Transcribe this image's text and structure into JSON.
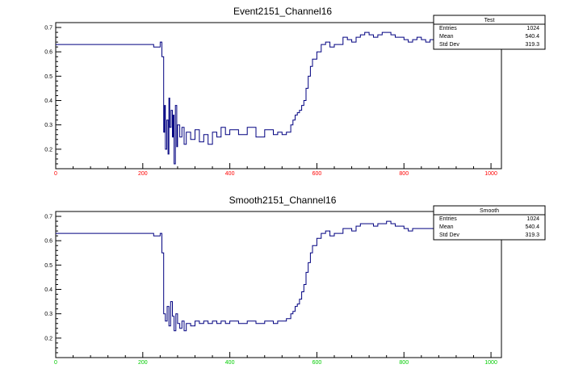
{
  "colors": {
    "trace": "#000080",
    "top_tick_labels": "#ff0000",
    "bottom_tick_labels": "#00cc00",
    "axis": "#000000"
  },
  "chart_data": [
    {
      "type": "line",
      "title": "Event2151_Channel16",
      "xlabel": "",
      "ylabel": "",
      "xlim": [
        0,
        1024
      ],
      "ylim": [
        0.12,
        0.72
      ],
      "x_ticks": [
        0,
        200,
        400,
        600,
        800,
        1000
      ],
      "y_ticks": [
        0.2,
        0.3,
        0.4,
        0.5,
        0.6,
        0.7
      ],
      "grid": false,
      "x_tick_color": "#ff0000",
      "stats": {
        "name": "Test",
        "rows": [
          {
            "label": "Entries",
            "value": "1024"
          },
          {
            "label": "Mean",
            "value": "540.4"
          },
          {
            "label": "Std Dev",
            "value": "319.3"
          }
        ]
      },
      "series": [
        {
          "x": [
            0,
            50,
            100,
            150,
            200,
            225,
            240,
            244,
            248,
            250,
            252,
            255,
            258,
            260,
            262,
            265,
            268,
            270,
            272,
            275,
            278,
            280,
            285,
            290,
            295,
            300,
            310,
            320,
            330,
            340,
            350,
            360,
            370,
            380,
            390,
            400,
            420,
            440,
            460,
            480,
            500,
            510,
            520,
            530,
            540,
            545,
            550,
            555,
            560,
            565,
            570,
            575,
            580,
            585,
            590,
            600,
            610,
            620,
            630,
            640,
            650,
            660,
            670,
            680,
            690,
            700,
            710,
            720,
            730,
            740,
            750,
            760,
            770,
            780,
            790,
            800,
            810,
            820,
            830,
            840,
            850,
            860,
            870,
            880,
            890,
            900,
            910,
            920,
            930,
            940,
            950,
            960,
            970,
            980,
            990,
            1000,
            1010,
            1020
          ],
          "y": [
            0.63,
            0.63,
            0.63,
            0.63,
            0.63,
            0.62,
            0.64,
            0.58,
            0.27,
            0.38,
            0.2,
            0.32,
            0.18,
            0.41,
            0.29,
            0.36,
            0.25,
            0.34,
            0.14,
            0.38,
            0.21,
            0.3,
            0.25,
            0.29,
            0.22,
            0.27,
            0.24,
            0.28,
            0.23,
            0.26,
            0.22,
            0.27,
            0.25,
            0.29,
            0.26,
            0.28,
            0.26,
            0.29,
            0.25,
            0.28,
            0.26,
            0.27,
            0.26,
            0.27,
            0.3,
            0.32,
            0.34,
            0.35,
            0.36,
            0.38,
            0.4,
            0.45,
            0.5,
            0.54,
            0.57,
            0.6,
            0.63,
            0.64,
            0.62,
            0.63,
            0.63,
            0.66,
            0.65,
            0.64,
            0.66,
            0.67,
            0.68,
            0.67,
            0.66,
            0.67,
            0.68,
            0.68,
            0.67,
            0.66,
            0.66,
            0.65,
            0.64,
            0.65,
            0.66,
            0.65,
            0.64,
            0.65,
            0.66,
            0.67,
            0.68,
            0.69,
            0.7,
            0.69,
            0.7,
            0.7,
            0.71,
            0.7,
            0.69,
            0.7,
            0.7,
            0.7,
            0.69,
            0.7
          ]
        }
      ]
    },
    {
      "type": "line",
      "title": "Smooth2151_Channel16",
      "xlabel": "",
      "ylabel": "",
      "xlim": [
        0,
        1024
      ],
      "ylim": [
        0.12,
        0.72
      ],
      "x_ticks": [
        0,
        200,
        400,
        600,
        800,
        1000
      ],
      "y_ticks": [
        0.2,
        0.3,
        0.4,
        0.5,
        0.6,
        0.7
      ],
      "grid": false,
      "x_tick_color": "#00cc00",
      "stats": {
        "name": "Smooth",
        "rows": [
          {
            "label": "Entries",
            "value": "1024"
          },
          {
            "label": "Mean",
            "value": "540.4"
          },
          {
            "label": "Std Dev",
            "value": "319.3"
          }
        ]
      },
      "series": [
        {
          "x": [
            0,
            50,
            100,
            150,
            200,
            225,
            240,
            244,
            248,
            252,
            256,
            260,
            264,
            268,
            272,
            276,
            280,
            285,
            290,
            295,
            300,
            310,
            320,
            330,
            340,
            350,
            360,
            370,
            380,
            390,
            400,
            420,
            440,
            460,
            480,
            500,
            510,
            520,
            530,
            540,
            545,
            550,
            555,
            560,
            565,
            570,
            575,
            580,
            585,
            590,
            600,
            610,
            620,
            630,
            640,
            650,
            660,
            670,
            680,
            690,
            700,
            710,
            720,
            730,
            740,
            750,
            760,
            770,
            780,
            790,
            800,
            810,
            820,
            830,
            840,
            850,
            860,
            870,
            880,
            890,
            900,
            910,
            920,
            930,
            940,
            950,
            960,
            970,
            980,
            990,
            1000,
            1010,
            1020
          ],
          "y": [
            0.63,
            0.63,
            0.63,
            0.63,
            0.63,
            0.62,
            0.63,
            0.55,
            0.3,
            0.27,
            0.33,
            0.25,
            0.35,
            0.29,
            0.23,
            0.3,
            0.26,
            0.24,
            0.27,
            0.23,
            0.26,
            0.25,
            0.27,
            0.26,
            0.27,
            0.26,
            0.27,
            0.26,
            0.27,
            0.26,
            0.27,
            0.26,
            0.27,
            0.26,
            0.27,
            0.26,
            0.27,
            0.27,
            0.28,
            0.3,
            0.31,
            0.33,
            0.34,
            0.36,
            0.39,
            0.42,
            0.47,
            0.51,
            0.55,
            0.58,
            0.61,
            0.63,
            0.64,
            0.62,
            0.63,
            0.63,
            0.65,
            0.65,
            0.64,
            0.66,
            0.67,
            0.67,
            0.67,
            0.66,
            0.67,
            0.67,
            0.68,
            0.67,
            0.66,
            0.66,
            0.65,
            0.64,
            0.65,
            0.65,
            0.65,
            0.65,
            0.65,
            0.66,
            0.67,
            0.68,
            0.69,
            0.69,
            0.69,
            0.7,
            0.7,
            0.7,
            0.7,
            0.69,
            0.7,
            0.7,
            0.7,
            0.7,
            0.7
          ]
        }
      ]
    }
  ]
}
